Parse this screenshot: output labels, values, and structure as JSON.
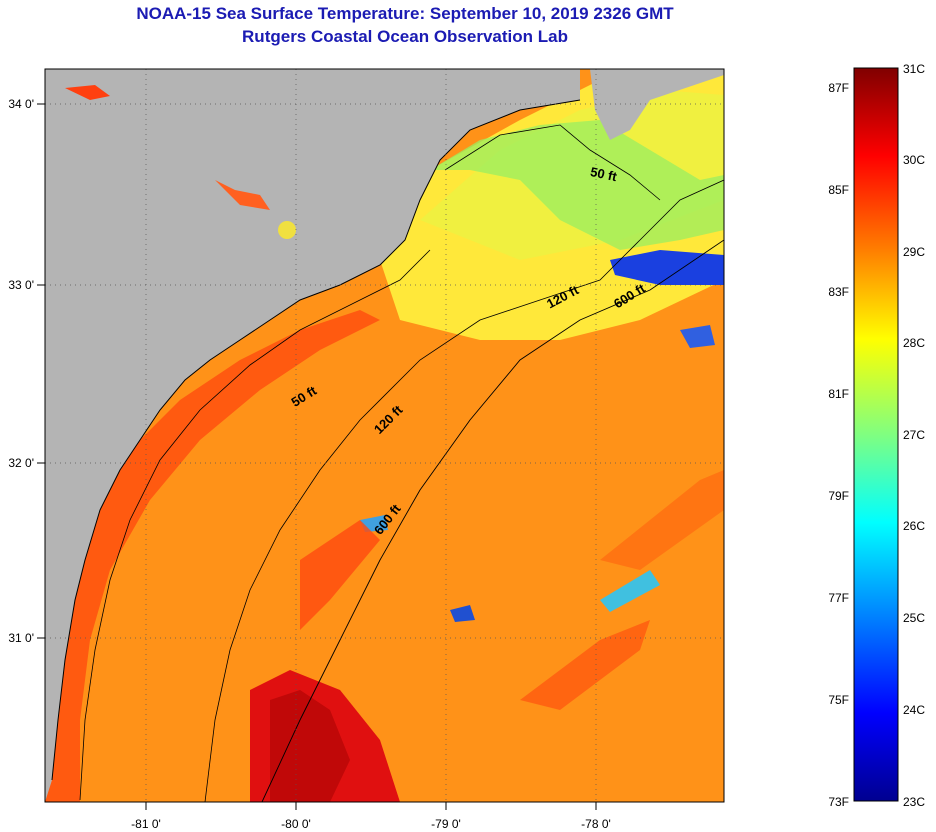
{
  "title": {
    "line1": "NOAA-15 Sea Surface Temperature:  September 10, 2019 2326 GMT",
    "line2": "Rutgers Coastal Ocean Observation Lab"
  },
  "map": {
    "region": "South Carolina / Georgia coast",
    "lon_range": [
      -81.7,
      -77.2
    ],
    "lat_range": [
      30.2,
      34.2
    ],
    "lon_ticks": [
      {
        "value": -81,
        "label": "-81 0'"
      },
      {
        "value": -80,
        "label": "-80 0'"
      },
      {
        "value": -79,
        "label": "-79 0'"
      },
      {
        "value": -78,
        "label": "-78 0'"
      }
    ],
    "lat_ticks": [
      {
        "value": 34,
        "label": "34 0'"
      },
      {
        "value": 33,
        "label": "33 0'"
      },
      {
        "value": 32,
        "label": "32 0'"
      },
      {
        "value": 31,
        "label": "31 0'"
      }
    ],
    "gridlines": "dotted",
    "land_color": "#b4b4b4",
    "contour_labels": [
      {
        "label": "50 ft"
      },
      {
        "label": "120 ft"
      },
      {
        "label": "600 ft"
      },
      {
        "label": "50 ft"
      },
      {
        "label": "120 ft"
      },
      {
        "label": "600 ft"
      }
    ]
  },
  "colorbar": {
    "celsius_labels": [
      "31C",
      "30C",
      "29C",
      "28C",
      "27C",
      "26C",
      "25C",
      "24C",
      "23C"
    ],
    "fahrenheit_labels": [
      "87F",
      "85F",
      "83F",
      "81F",
      "79F",
      "77F",
      "75F",
      "73F"
    ],
    "colors": [
      "#800000",
      "#ff0000",
      "#ff8000",
      "#ffff00",
      "#80ff80",
      "#00ffff",
      "#0080ff",
      "#0000ff",
      "#000090"
    ]
  }
}
